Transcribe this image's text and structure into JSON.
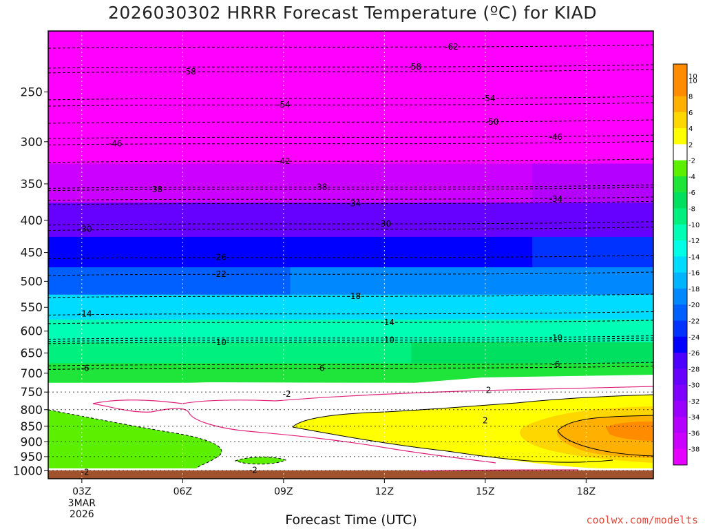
{
  "chart_data": {
    "type": "heatmap",
    "title": "2026030302 HRRR Forecast Temperature (ºC) for KIAD",
    "xlabel": "Forecast Time (UTC)",
    "credit": "coolwx.com/modelts",
    "x_ticks": [
      {
        "label": "03Z",
        "hour": 3,
        "sub": [
          "3MAR",
          "2026"
        ]
      },
      {
        "label": "06Z",
        "hour": 6,
        "sub": []
      },
      {
        "label": "09Z",
        "hour": 9,
        "sub": []
      },
      {
        "label": "12Z",
        "hour": 12,
        "sub": []
      },
      {
        "label": "15Z",
        "hour": 15,
        "sub": []
      },
      {
        "label": "18Z",
        "hour": 18,
        "sub": []
      }
    ],
    "xlim": [
      2,
      20
    ],
    "y_ticks": [
      250,
      300,
      350,
      400,
      450,
      500,
      550,
      600,
      650,
      700,
      750,
      800,
      850,
      900,
      950,
      1000
    ],
    "ylim": [
      1030,
      200
    ],
    "yscale": "log",
    "colorbar": {
      "levels": [
        -40,
        -38,
        -36,
        -34,
        -32,
        -30,
        -28,
        -26,
        -24,
        -22,
        -20,
        -18,
        -16,
        -14,
        -12,
        -10,
        -8,
        -6,
        -4,
        -2,
        2,
        4,
        6,
        8,
        10
      ],
      "colors": [
        "#ff00ff",
        "#e600ff",
        "#cc00ff",
        "#b300ff",
        "#9900ff",
        "#7f00ff",
        "#6600ff",
        "#4c00ff",
        "#0000ff",
        "#0033ff",
        "#0060ff",
        "#0088ff",
        "#00b4ff",
        "#00dcff",
        "#00ffe6",
        "#00ffb4",
        "#00f080",
        "#00e060",
        "#1fe53a",
        "#5cf000",
        "#ffffff",
        "#ffff00",
        "#ffd700",
        "#ffb000",
        "#ff8c00",
        "#ff8c00"
      ]
    },
    "temperature_levels": [
      {
        "p": 200,
        "t": [
          -64,
          -64,
          -64,
          -64,
          -64,
          -64
        ]
      },
      {
        "p": 230,
        "t": [
          -59,
          -59,
          -59,
          -59,
          -59,
          -59
        ]
      },
      {
        "p": 260,
        "t": [
          -55,
          -55,
          -55,
          -54,
          -53,
          -53
        ]
      },
      {
        "p": 300,
        "t": [
          -46,
          -46,
          -46,
          -47,
          -47,
          -47
        ]
      },
      {
        "p": 350,
        "t": [
          -38,
          -38,
          -38,
          -37,
          -36,
          -35
        ]
      },
      {
        "p": 400,
        "t": [
          -30,
          -30,
          -30,
          -30,
          -29,
          -28
        ]
      },
      {
        "p": 450,
        "t": [
          -26,
          -26,
          -25,
          -25,
          -24,
          -24
        ]
      },
      {
        "p": 500,
        "t": [
          -21,
          -21,
          -20,
          -19,
          -19,
          -18
        ]
      },
      {
        "p": 550,
        "t": [
          -15,
          -15,
          -16,
          -16,
          -16,
          -15
        ]
      },
      {
        "p": 600,
        "t": [
          -12,
          -12,
          -12,
          -11,
          -11,
          -10
        ]
      },
      {
        "p": 650,
        "t": [
          -9,
          -9,
          -9,
          -8,
          -8,
          -7
        ]
      },
      {
        "p": 700,
        "t": [
          -6,
          -6,
          -5,
          -5,
          -5,
          -4
        ]
      },
      {
        "p": 750,
        "t": [
          -2,
          -2,
          0,
          0,
          0,
          0
        ]
      },
      {
        "p": 800,
        "t": [
          0,
          0,
          0,
          1,
          2,
          3
        ]
      },
      {
        "p": 850,
        "t": [
          -1,
          0,
          3,
          3,
          4,
          6
        ]
      },
      {
        "p": 900,
        "t": [
          -3,
          -1,
          3,
          3,
          4,
          8
        ]
      },
      {
        "p": 950,
        "t": [
          -3,
          -1,
          0,
          1,
          1,
          3
        ]
      },
      {
        "p": 1000,
        "t": [
          -2,
          0,
          0,
          0,
          1,
          2
        ]
      }
    ],
    "contour_labels": [
      {
        "text": "-62",
        "hour": 14.0,
        "p": 212
      },
      {
        "text": "-58",
        "hour": 6.2,
        "p": 232
      },
      {
        "text": "-58",
        "hour": 12.9,
        "p": 228
      },
      {
        "text": "-54",
        "hour": 9.0,
        "p": 262
      },
      {
        "text": "-54",
        "hour": 15.1,
        "p": 256
      },
      {
        "text": "-50",
        "hour": 15.2,
        "p": 279
      },
      {
        "text": "-46",
        "hour": 4.0,
        "p": 302
      },
      {
        "text": "-46",
        "hour": 17.1,
        "p": 295
      },
      {
        "text": "-42",
        "hour": 9.0,
        "p": 322
      },
      {
        "text": "-38",
        "hour": 5.2,
        "p": 357
      },
      {
        "text": "-38",
        "hour": 10.1,
        "p": 354
      },
      {
        "text": "-34",
        "hour": 11.1,
        "p": 376
      },
      {
        "text": "-34",
        "hour": 17.1,
        "p": 370
      },
      {
        "text": "-30",
        "hour": 3.1,
        "p": 413
      },
      {
        "text": "-30",
        "hour": 12.0,
        "p": 405
      },
      {
        "text": "-26",
        "hour": 7.1,
        "p": 458
      },
      {
        "text": "-22",
        "hour": 7.1,
        "p": 487
      },
      {
        "text": "-18",
        "hour": 11.1,
        "p": 528
      },
      {
        "text": "-14",
        "hour": 3.1,
        "p": 563
      },
      {
        "text": "-14",
        "hour": 12.1,
        "p": 581
      },
      {
        "text": "-10",
        "hour": 7.1,
        "p": 625
      },
      {
        "text": "-10",
        "hour": 12.1,
        "p": 620
      },
      {
        "text": "-10",
        "hour": 17.1,
        "p": 615
      },
      {
        "text": "-6",
        "hour": 3.1,
        "p": 687
      },
      {
        "text": "-6",
        "hour": 10.1,
        "p": 687
      },
      {
        "text": "-6",
        "hour": 17.1,
        "p": 678
      },
      {
        "text": "-2",
        "hour": 9.1,
        "p": 755
      },
      {
        "text": "2",
        "hour": 15.1,
        "p": 745
      },
      {
        "text": "2",
        "hour": 15.0,
        "p": 832
      },
      {
        "text": "-2",
        "hour": 3.1,
        "p": 1005
      },
      {
        "text": "-2",
        "hour": 8.1,
        "p": 998
      }
    ]
  }
}
